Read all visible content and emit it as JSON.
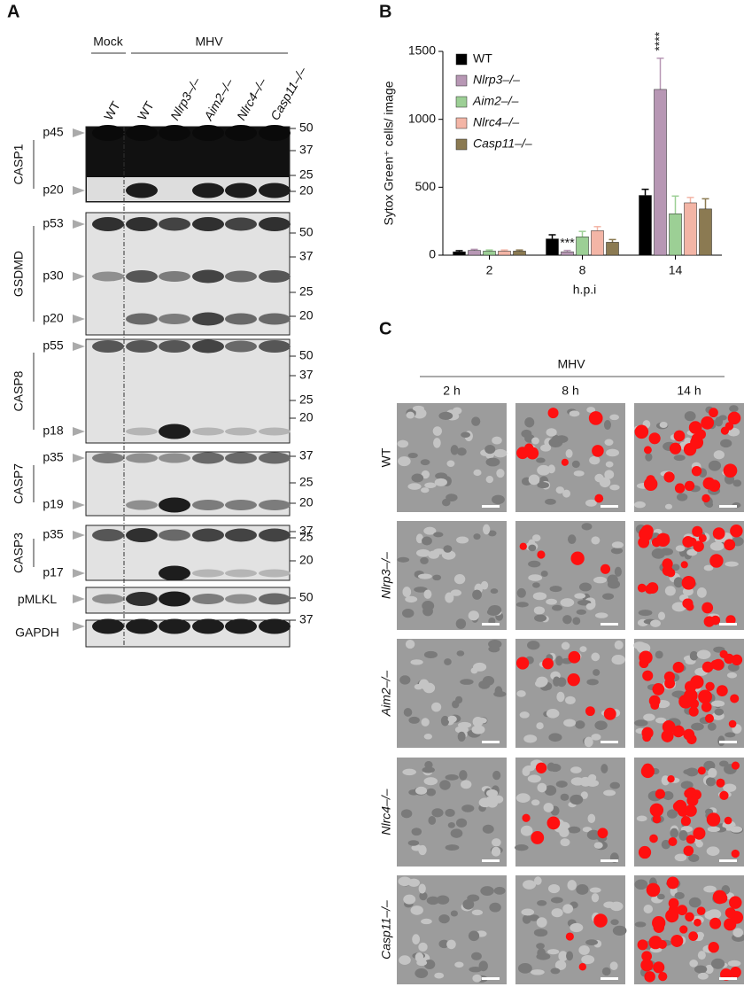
{
  "panel_a": {
    "label": "A",
    "groups": [
      "Mock",
      "MHV"
    ],
    "lanes": [
      "WT",
      "WT",
      "Nlrp3–/–",
      "Aim2–/–",
      "Nlrc4–/–",
      "Casp11–/–"
    ],
    "blots": [
      {
        "name": "CASP1",
        "bands": [
          "p45",
          "p20"
        ],
        "markers": [
          50,
          37,
          25,
          20
        ]
      },
      {
        "name": "GSDMD",
        "bands": [
          "p53",
          "p30",
          "p20"
        ],
        "markers": [
          50,
          37,
          25,
          20
        ]
      },
      {
        "name": "CASP8",
        "bands": [
          "p55",
          "p18"
        ],
        "markers": [
          50,
          37,
          25,
          20
        ]
      },
      {
        "name": "CASP7",
        "bands": [
          "p35",
          "p19"
        ],
        "markers": [
          37,
          25,
          20
        ]
      },
      {
        "name": "CASP3",
        "bands": [
          "p35",
          "p17"
        ],
        "markers": [
          37,
          25,
          20
        ]
      },
      {
        "name": "pMLKL",
        "bands": [],
        "markers": [
          50
        ]
      },
      {
        "name": "GAPDH",
        "bands": [],
        "markers": [
          37
        ]
      }
    ]
  },
  "chart_data": {
    "type": "bar",
    "panel_label": "B",
    "y_label": "Sytox Green⁺ cells/ image",
    "x_label": "h.p.i",
    "categories": [
      "2",
      "8",
      "14"
    ],
    "series": [
      {
        "name": "WT",
        "color": "#000000",
        "values": [
          25,
          120,
          440
        ],
        "errors": [
          8,
          30,
          45
        ]
      },
      {
        "name": "Nlrp3–/–",
        "color": "#b797b4",
        "values": [
          35,
          25,
          1220
        ],
        "errors": [
          8,
          10,
          230
        ]
      },
      {
        "name": "Aim2–/–",
        "color": "#9ccf95",
        "values": [
          30,
          135,
          305
        ],
        "errors": [
          8,
          40,
          130
        ]
      },
      {
        "name": "Nlrc4–/–",
        "color": "#f3b5a6",
        "values": [
          30,
          180,
          385
        ],
        "errors": [
          8,
          30,
          40
        ]
      },
      {
        "name": "Casp11–/–",
        "color": "#8b7a52",
        "values": [
          30,
          95,
          340
        ],
        "errors": [
          8,
          20,
          75
        ]
      }
    ],
    "annotations": [
      "***",
      "****"
    ],
    "ylim": [
      0,
      1500
    ],
    "yticks": [
      0,
      500,
      1000,
      1500
    ],
    "legend": "upper-left"
  },
  "panel_c": {
    "label": "C",
    "group": "MHV",
    "columns": [
      "2 h",
      "8 h",
      "14 h"
    ],
    "rows": [
      "WT",
      "Nlrp3–/–",
      "Aim2–/–",
      "Nlrc4–/–",
      "Casp11–/–"
    ]
  }
}
